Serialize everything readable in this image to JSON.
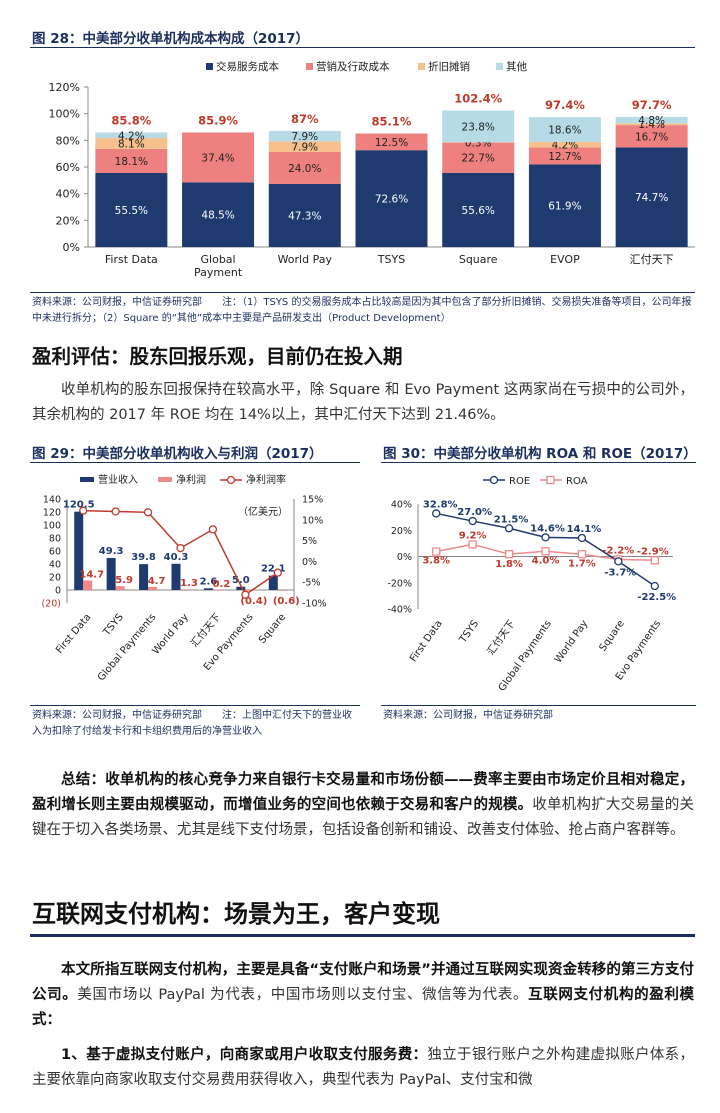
{
  "fig28": {
    "title": "图 28：中美部分收单机构成本构成（2017）",
    "legend": [
      "交易服务成本",
      "营销及行政成本",
      "折旧摊销",
      "其他"
    ],
    "colors": [
      "#1f3a6e",
      "#ee8080",
      "#f5c08c",
      "#b7dbe6"
    ],
    "source": "资料来源：公司财报，中信证券研究部　　注：（1）TSYS 的交易服务成本占比较高是因为其中包含了部分折旧摊销、交易损失准备等项目，公司年报中未进行拆分；（2）Square 的“其他”成本中主要是产品研发支出（Product Development）"
  },
  "section1": {
    "title": "盈利评估：股东回报乐观，目前仍在投入期",
    "para": "收单机构的股东回报保持在较高水平，除 Square 和 Evo Payment 这两家尚在亏损中的公司外，其余机构的 2017 年 ROE 均在 14%以上，其中汇付天下达到 21.46%。"
  },
  "fig29": {
    "title": "图 29：中美部分收单机构收入与利润（2017）",
    "unit": "（亿美元）",
    "legend": [
      "营业收入",
      "净利润",
      "净利润率"
    ],
    "source": "资料来源：公司财报，中信证券研究部　　注：上图中汇付天下的营业收入为扣除了付给发卡行和卡组织费用后的净营业收入"
  },
  "fig30": {
    "title": "图 30：中美部分收单机构 ROA 和 ROE（2017）",
    "legend": [
      "ROE",
      "ROA"
    ],
    "source": "资料来源：公司财报，中信证券研究部"
  },
  "summary": {
    "bold": "总结：收单机构的核心竞争力来自银行卡交易量和市场份额——费率主要由市场定价且相对稳定，盈利增长则主要由规模驱动，而增值业务的空间也依赖于交易和客户的规模。",
    "rest": "收单机构扩大交易量的关键在于切入各类场景、尤其是线下支付场景，包括设备创新和铺设、改善支付体验、抢占商户客群等。"
  },
  "section2": {
    "title": "互联网支付机构：场景为王，客户变现",
    "p1_bold": "本文所指互联网支付机构，主要是具备“支付账户和场景”并通过互联网实现资金转移的第三方支付公司。",
    "p1_mid": "美国市场以 PayPal 为代表，中国市场则以支付宝、微信等为代表。",
    "p1_bold2": "互联网支付机构的盈利模式：",
    "p2_bold": "1、基于虚拟支付账户，向商家或用户收取支付服务费：",
    "p2_rest": "独立于银行账户之外构建虚拟账户体系，主要依靠向商家收取支付交易费用获得收入，典型代表为 PayPal、支付宝和微"
  },
  "chart_data": [
    {
      "type": "bar",
      "stacked": true,
      "categories": [
        "First Data",
        "Global Payment",
        "World Pay",
        "TSYS",
        "Square",
        "EVOP",
        "汇付天下"
      ],
      "series": [
        {
          "name": "交易服务成本",
          "values": [
            55.5,
            48.5,
            47.3,
            72.6,
            55.6,
            61.9,
            74.7
          ]
        },
        {
          "name": "营销及行政成本",
          "values": [
            18.1,
            37.4,
            24.0,
            12.5,
            22.7,
            12.7,
            16.7
          ]
        },
        {
          "name": "折旧摊销",
          "values": [
            8.1,
            null,
            7.9,
            null,
            0.3,
            4.2,
            1.4
          ]
        },
        {
          "name": "其他",
          "values": [
            4.2,
            null,
            7.9,
            null,
            23.8,
            18.6,
            4.8
          ]
        }
      ],
      "totals": [
        "85.8%",
        "85.9%",
        "87%",
        "85.1%",
        "102.4%",
        "97.4%",
        "97.7%"
      ],
      "ylim": [
        0,
        120
      ],
      "yticks": [
        "0%",
        "20%",
        "40%",
        "60%",
        "80%",
        "100%",
        "120%"
      ],
      "legend_position": "top"
    },
    {
      "type": "bar",
      "categories": [
        "First Data",
        "TSYS",
        "Global Payments",
        "World Pay",
        "汇付天下",
        "Evo Payments",
        "Square"
      ],
      "series": [
        {
          "name": "营业收入",
          "values": [
            120.5,
            49.3,
            39.8,
            40.3,
            2.6,
            5.0,
            22.1
          ],
          "labels": [
            "120.5",
            "49.3",
            "39.8",
            "40.3",
            "2.6",
            "5.0",
            "22.1"
          ]
        },
        {
          "name": "净利润",
          "values": [
            14.7,
            5.9,
            4.7,
            1.3,
            0.2,
            -0.4,
            -0.6
          ],
          "labels": [
            "14.7",
            "5.9",
            "4.7",
            "1.3",
            "0.2",
            "(0.4)",
            "(0.6)"
          ]
        },
        {
          "name": "净利润率",
          "type": "line",
          "axis": "right",
          "values": [
            12.2,
            12.0,
            11.8,
            3.2,
            7.7,
            -8.0,
            -2.7
          ]
        }
      ],
      "ylim": [
        -20,
        140
      ],
      "yticks": [
        "(20)",
        "0",
        "20",
        "40",
        "60",
        "80",
        "100",
        "120",
        "140"
      ],
      "y2lim": [
        -10,
        15
      ],
      "y2ticks": [
        "-10%",
        "-5%",
        "0%",
        "5%",
        "10%",
        "15%"
      ],
      "legend_position": "top"
    },
    {
      "type": "line",
      "categories": [
        "First Data",
        "TSYS",
        "汇付天下",
        "Global Payments",
        "World Pay",
        "Square",
        "Evo Payments"
      ],
      "series": [
        {
          "name": "ROE",
          "values": [
            32.8,
            27.0,
            21.5,
            14.6,
            14.1,
            -3.7,
            -22.5
          ],
          "labels": [
            "32.8%",
            "27.0%",
            "21.5%",
            "14.6%",
            "14.1%",
            "-3.7%",
            "-22.5%"
          ]
        },
        {
          "name": "ROA",
          "values": [
            3.8,
            9.2,
            1.8,
            4.0,
            1.7,
            -2.2,
            -2.9
          ],
          "labels": [
            "3.8%",
            "9.2%",
            "1.8%",
            "4.0%",
            "1.7%",
            "-2.2%",
            "-2.9%"
          ]
        }
      ],
      "ylim": [
        -40,
        40
      ],
      "yticks": [
        "-40%",
        "-20%",
        "0%",
        "20%",
        "40%"
      ],
      "legend_position": "top"
    }
  ]
}
